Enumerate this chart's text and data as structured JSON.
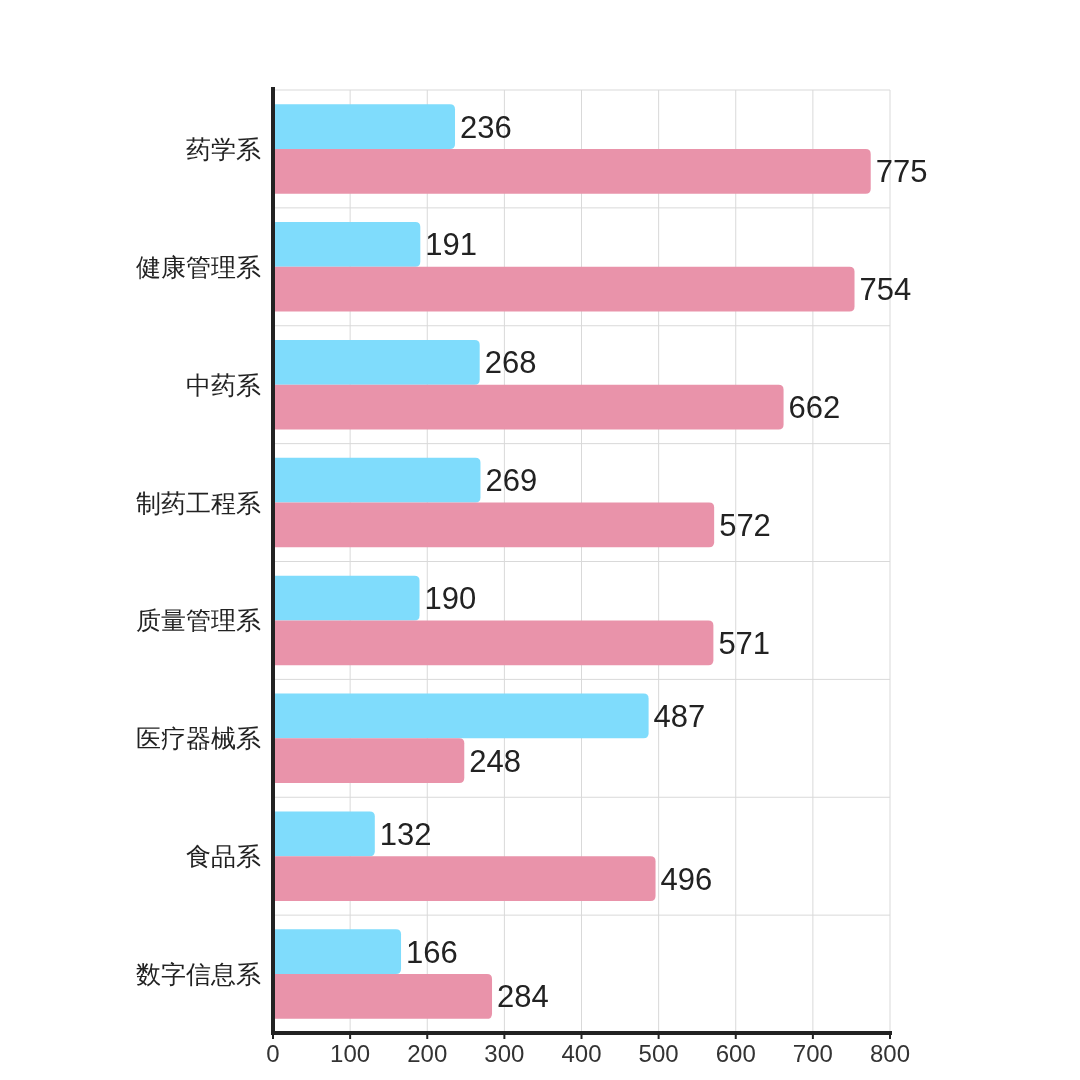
{
  "chart_data": {
    "type": "bar",
    "orientation": "horizontal",
    "categories": [
      "药学系",
      "健康管理系",
      "中药系",
      "制药工程系",
      "质量管理系",
      "医疗器械系",
      "食品系",
      "数字信息系"
    ],
    "series": [
      {
        "color": "#7fdcfc",
        "values": [
          236,
          191,
          268,
          269,
          190,
          487,
          132,
          166
        ]
      },
      {
        "color": "#e993aa",
        "values": [
          775,
          754,
          662,
          572,
          571,
          248,
          496,
          284
        ]
      }
    ],
    "xlim": [
      0,
      800
    ],
    "xticks": [
      0,
      100,
      200,
      300,
      400,
      500,
      600,
      700,
      800
    ],
    "grid": true,
    "data_labels": true
  }
}
